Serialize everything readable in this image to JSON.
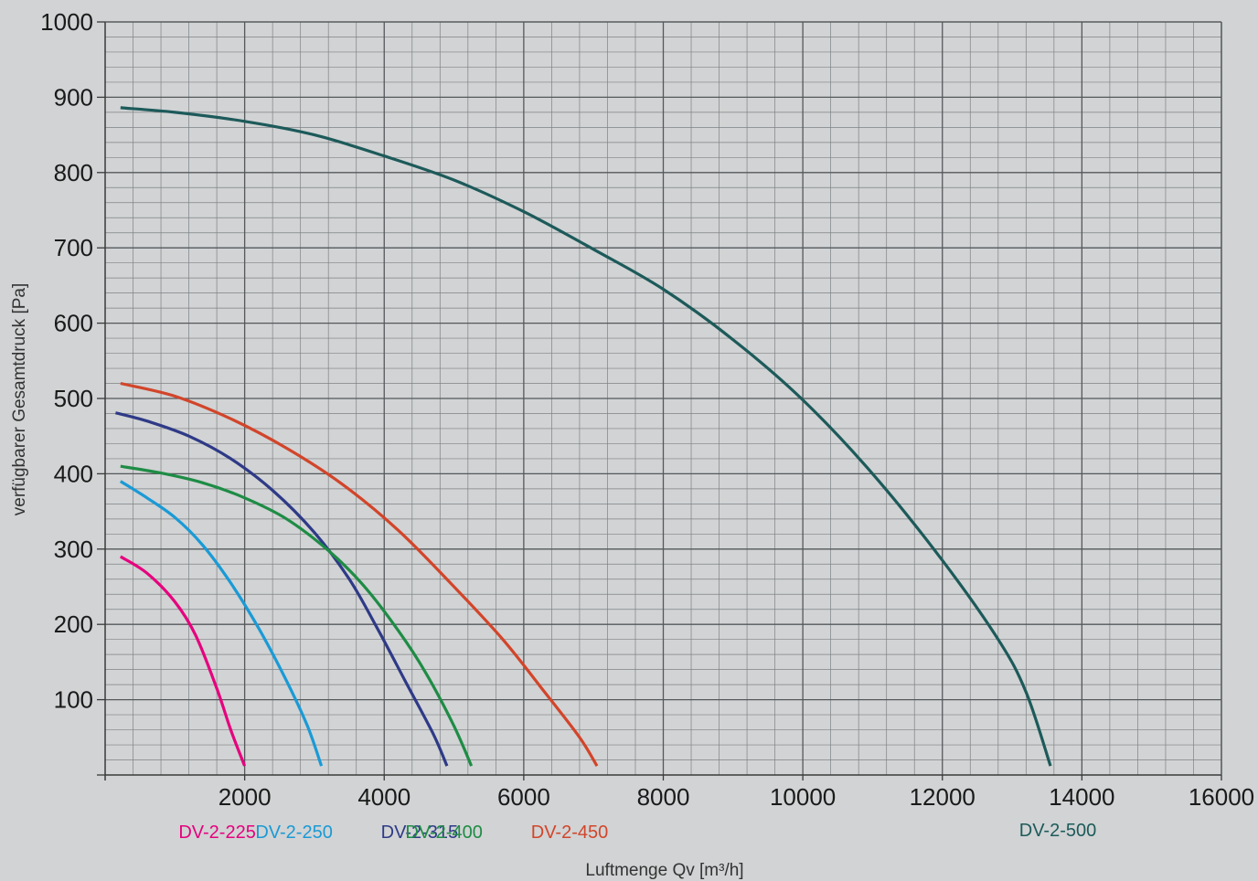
{
  "chart_data": {
    "type": "line",
    "title": "",
    "xlabel": "Luftmenge Qv [m³/h]",
    "ylabel": "verfügbarer Gesamtdruck [Pa]",
    "xlim": [
      0,
      16000
    ],
    "ylim": [
      0,
      1000
    ],
    "x_ticks": [
      {
        "value": 2000,
        "label": "2000"
      },
      {
        "value": 4000,
        "label": "4000"
      },
      {
        "value": 6000,
        "label": "6000"
      },
      {
        "value": 8000,
        "label": "8000"
      },
      {
        "value": 10000,
        "label": "10000"
      },
      {
        "value": 12000,
        "label": "12000"
      },
      {
        "value": 14000,
        "label": "14000"
      },
      {
        "value": 16000,
        "label": "16000"
      }
    ],
    "y_ticks": [
      {
        "value": 100,
        "label": "100"
      },
      {
        "value": 200,
        "label": "200"
      },
      {
        "value": 300,
        "label": "300"
      },
      {
        "value": 400,
        "label": "400"
      },
      {
        "value": 500,
        "label": "500"
      },
      {
        "value": 600,
        "label": "600"
      },
      {
        "value": 700,
        "label": "700"
      },
      {
        "value": 800,
        "label": "800"
      },
      {
        "value": 900,
        "label": "900"
      },
      {
        "value": 1000,
        "label": "1000"
      }
    ],
    "grid": true,
    "background_color": "#d1d3d4",
    "grid_color": "#7f8285",
    "series": [
      {
        "name": "DV-2-225",
        "color": "#e6007e",
        "points": [
          [
            220,
            290
          ],
          [
            600,
            268
          ],
          [
            1000,
            230
          ],
          [
            1300,
            185
          ],
          [
            1600,
            115
          ],
          [
            1800,
            60
          ],
          [
            2000,
            12
          ]
        ]
      },
      {
        "name": "DV-2-250",
        "color": "#1a9ad6",
        "points": [
          [
            220,
            390
          ],
          [
            600,
            368
          ],
          [
            1000,
            342
          ],
          [
            1400,
            305
          ],
          [
            1800,
            255
          ],
          [
            2200,
            195
          ],
          [
            2600,
            125
          ],
          [
            2900,
            65
          ],
          [
            3100,
            12
          ]
        ]
      },
      {
        "name": "DV-2-315",
        "color": "#2e3a87",
        "points": [
          [
            150,
            481
          ],
          [
            600,
            470
          ],
          [
            1200,
            450
          ],
          [
            1800,
            420
          ],
          [
            2400,
            378
          ],
          [
            3000,
            322
          ],
          [
            3500,
            260
          ],
          [
            3900,
            195
          ],
          [
            4300,
            125
          ],
          [
            4700,
            55
          ],
          [
            4900,
            12
          ]
        ]
      },
      {
        "name": "DV-2-400",
        "color": "#1e8c45",
        "points": [
          [
            220,
            410
          ],
          [
            800,
            401
          ],
          [
            1400,
            388
          ],
          [
            2000,
            368
          ],
          [
            2600,
            340
          ],
          [
            3200,
            298
          ],
          [
            3700,
            252
          ],
          [
            4200,
            192
          ],
          [
            4600,
            135
          ],
          [
            5000,
            65
          ],
          [
            5250,
            12
          ]
        ]
      },
      {
        "name": "DV-2-450",
        "color": "#d2452a",
        "points": [
          [
            220,
            520
          ],
          [
            1000,
            503
          ],
          [
            1800,
            473
          ],
          [
            2600,
            434
          ],
          [
            3400,
            386
          ],
          [
            4200,
            325
          ],
          [
            5000,
            250
          ],
          [
            5700,
            180
          ],
          [
            6300,
            110
          ],
          [
            6800,
            50
          ],
          [
            7050,
            12
          ]
        ]
      },
      {
        "name": "DV-2-500",
        "color": "#1d5a5a",
        "points": [
          [
            220,
            886
          ],
          [
            1000,
            880
          ],
          [
            2000,
            868
          ],
          [
            3000,
            850
          ],
          [
            4000,
            822
          ],
          [
            5000,
            790
          ],
          [
            6000,
            748
          ],
          [
            7000,
            698
          ],
          [
            8000,
            645
          ],
          [
            9000,
            578
          ],
          [
            10000,
            498
          ],
          [
            11000,
            400
          ],
          [
            12000,
            285
          ],
          [
            12800,
            180
          ],
          [
            13200,
            110
          ],
          [
            13550,
            12
          ]
        ]
      }
    ]
  }
}
